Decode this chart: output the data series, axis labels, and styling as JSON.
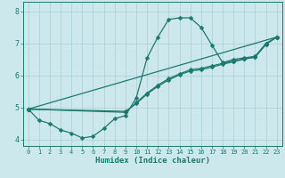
{
  "xlabel": "Humidex (Indice chaleur)",
  "xlim": [
    -0.5,
    23.5
  ],
  "ylim": [
    3.8,
    8.3
  ],
  "xticks": [
    0,
    1,
    2,
    3,
    4,
    5,
    6,
    7,
    8,
    9,
    10,
    11,
    12,
    13,
    14,
    15,
    16,
    17,
    18,
    19,
    20,
    21,
    22,
    23
  ],
  "yticks": [
    4,
    5,
    6,
    7,
    8
  ],
  "bg_color": "#cce8ec",
  "grid_color": "#aacdd4",
  "line_color": "#1a7a6e",
  "curves": [
    {
      "x": [
        0,
        1,
        2,
        3,
        4,
        5,
        6,
        7,
        8,
        9,
        10,
        11,
        12,
        13,
        14,
        15,
        16,
        17,
        18,
        19,
        20,
        21,
        22,
        23
      ],
      "y": [
        4.95,
        4.6,
        4.5,
        4.3,
        4.2,
        4.05,
        4.1,
        4.35,
        4.65,
        4.75,
        5.3,
        6.55,
        7.2,
        7.75,
        7.8,
        7.8,
        7.5,
        6.95,
        6.4,
        6.5,
        6.55,
        6.6,
        7.0,
        7.2
      ]
    },
    {
      "x": [
        0,
        23
      ],
      "y": [
        4.95,
        7.2
      ]
    },
    {
      "x": [
        0,
        9,
        10,
        11,
        12,
        13,
        14,
        15,
        16,
        17,
        18,
        19,
        20,
        21,
        22,
        23
      ],
      "y": [
        4.95,
        4.85,
        5.15,
        5.45,
        5.7,
        5.9,
        6.05,
        6.18,
        6.22,
        6.3,
        6.38,
        6.45,
        6.52,
        6.58,
        6.98,
        7.2
      ]
    },
    {
      "x": [
        0,
        9,
        10,
        11,
        12,
        13,
        14,
        15,
        16,
        17,
        18,
        19,
        20,
        21,
        22,
        23
      ],
      "y": [
        4.95,
        4.88,
        5.12,
        5.42,
        5.66,
        5.86,
        6.02,
        6.14,
        6.18,
        6.26,
        6.35,
        6.43,
        6.51,
        6.57,
        6.97,
        7.2
      ]
    }
  ],
  "marker": "D",
  "markersize": 2.5,
  "linewidth": 0.9
}
